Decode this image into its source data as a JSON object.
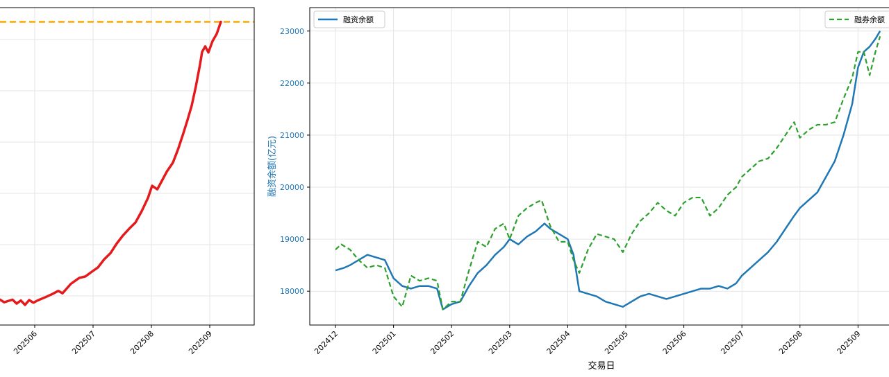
{
  "charts": [
    {
      "id": "left",
      "type": "line",
      "x_ticks": [
        "202506",
        "202507",
        "202508",
        "202509"
      ],
      "series": [
        {
          "color": "#e41a1c",
          "style": "solid",
          "points": [
            [
              0.0,
              0.116
            ],
            [
              0.02,
              0.104
            ],
            [
              0.04,
              0.11
            ],
            [
              0.06,
              0.116
            ],
            [
              0.08,
              0.098
            ],
            [
              0.1,
              0.112
            ],
            [
              0.12,
              0.092
            ],
            [
              0.14,
              0.114
            ],
            [
              0.16,
              0.102
            ],
            [
              0.18,
              0.112
            ],
            [
              0.22,
              0.128
            ],
            [
              0.25,
              0.141
            ],
            [
              0.28,
              0.156
            ],
            [
              0.3,
              0.145
            ],
            [
              0.34,
              0.188
            ],
            [
              0.38,
              0.215
            ],
            [
              0.41,
              0.222
            ],
            [
              0.44,
              0.243
            ],
            [
              0.47,
              0.263
            ],
            [
              0.5,
              0.3
            ],
            [
              0.53,
              0.328
            ],
            [
              0.56,
              0.372
            ],
            [
              0.59,
              0.409
            ],
            [
              0.62,
              0.44
            ],
            [
              0.65,
              0.468
            ],
            [
              0.68,
              0.52
            ],
            [
              0.71,
              0.58
            ],
            [
              0.73,
              0.636
            ],
            [
              0.755,
              0.62
            ],
            [
              0.78,
              0.664
            ],
            [
              0.8,
              0.7
            ],
            [
              0.83,
              0.742
            ],
            [
              0.855,
              0.804
            ],
            [
              0.88,
              0.876
            ],
            [
              0.9,
              0.937
            ],
            [
              0.92,
              1.002
            ],
            [
              0.94,
              1.09
            ],
            [
              0.96,
              1.19
            ],
            [
              0.97,
              1.248
            ],
            [
              0.985,
              1.273
            ],
            [
              1.0,
              1.245
            ],
            [
              1.02,
              1.297
            ],
            [
              1.04,
              1.33
            ],
            [
              1.06,
              1.385
            ]
          ]
        }
      ],
      "reference_line": {
        "color": "#ffa500",
        "style": "dashed",
        "level": 1.385
      },
      "xlim_norm": [
        0.0,
        1.09
      ],
      "ylim_norm": [
        0.0,
        1.45
      ],
      "grid": true
    },
    {
      "id": "right",
      "type": "line",
      "x_label": "交易日",
      "y_label": "融资余额(亿元)",
      "x_ticks": [
        "202412",
        "202501",
        "202502",
        "202503",
        "202504",
        "202505",
        "202506",
        "202507",
        "202508",
        "202509"
      ],
      "y_ticks": [
        "18000",
        "19000",
        "20000",
        "21000",
        "22000",
        "23000"
      ],
      "ylim": [
        17350,
        23450
      ],
      "grid": true,
      "legend_left": "融资余额",
      "legend_right": "融券余额",
      "series": [
        {
          "name": "融资余额",
          "color": "#1f77b4",
          "style": "solid",
          "points": [
            [
              0.0,
              18400
            ],
            [
              0.15,
              18450
            ],
            [
              0.25,
              18500
            ],
            [
              0.4,
              18600
            ],
            [
              0.55,
              18700
            ],
            [
              0.7,
              18650
            ],
            [
              0.85,
              18600
            ],
            [
              1.0,
              18250
            ],
            [
              1.15,
              18100
            ],
            [
              1.3,
              18050
            ],
            [
              1.45,
              18100
            ],
            [
              1.6,
              18100
            ],
            [
              1.75,
              18050
            ],
            [
              1.85,
              17650
            ],
            [
              2.0,
              17750
            ],
            [
              2.15,
              17800
            ],
            [
              2.3,
              18100
            ],
            [
              2.45,
              18350
            ],
            [
              2.6,
              18500
            ],
            [
              2.75,
              18700
            ],
            [
              2.9,
              18850
            ],
            [
              3.0,
              19000
            ],
            [
              3.15,
              18900
            ],
            [
              3.3,
              19050
            ],
            [
              3.45,
              19150
            ],
            [
              3.6,
              19300
            ],
            [
              3.7,
              19200
            ],
            [
              3.85,
              19100
            ],
            [
              4.0,
              19000
            ],
            [
              4.1,
              18700
            ],
            [
              4.2,
              18000
            ],
            [
              4.35,
              17950
            ],
            [
              4.5,
              17900
            ],
            [
              4.65,
              17800
            ],
            [
              4.8,
              17750
            ],
            [
              4.95,
              17700
            ],
            [
              5.1,
              17800
            ],
            [
              5.25,
              17900
            ],
            [
              5.4,
              17950
            ],
            [
              5.55,
              17900
            ],
            [
              5.7,
              17850
            ],
            [
              5.85,
              17900
            ],
            [
              6.0,
              17950
            ],
            [
              6.15,
              18000
            ],
            [
              6.3,
              18050
            ],
            [
              6.45,
              18050
            ],
            [
              6.6,
              18100
            ],
            [
              6.75,
              18050
            ],
            [
              6.9,
              18150
            ],
            [
              7.0,
              18300
            ],
            [
              7.15,
              18450
            ],
            [
              7.3,
              18600
            ],
            [
              7.45,
              18750
            ],
            [
              7.6,
              18950
            ],
            [
              7.75,
              19200
            ],
            [
              7.9,
              19450
            ],
            [
              8.0,
              19600
            ],
            [
              8.15,
              19750
            ],
            [
              8.3,
              19900
            ],
            [
              8.45,
              20200
            ],
            [
              8.6,
              20500
            ],
            [
              8.75,
              21000
            ],
            [
              8.9,
              21600
            ],
            [
              9.0,
              22300
            ],
            [
              9.1,
              22600
            ],
            [
              9.2,
              22700
            ],
            [
              9.3,
              22850
            ],
            [
              9.38,
              23000
            ]
          ]
        },
        {
          "name": "融券余额",
          "color": "#2ca02c",
          "style": "dashed",
          "points": [
            [
              0.0,
              18800
            ],
            [
              0.1,
              18900
            ],
            [
              0.25,
              18800
            ],
            [
              0.4,
              18600
            ],
            [
              0.55,
              18450
            ],
            [
              0.7,
              18500
            ],
            [
              0.85,
              18450
            ],
            [
              1.0,
              17900
            ],
            [
              1.15,
              17700
            ],
            [
              1.3,
              18300
            ],
            [
              1.45,
              18200
            ],
            [
              1.6,
              18250
            ],
            [
              1.75,
              18200
            ],
            [
              1.85,
              17650
            ],
            [
              2.0,
              17800
            ],
            [
              2.15,
              17800
            ],
            [
              2.3,
              18400
            ],
            [
              2.45,
              18950
            ],
            [
              2.6,
              18850
            ],
            [
              2.75,
              19200
            ],
            [
              2.9,
              19300
            ],
            [
              3.0,
              19000
            ],
            [
              3.15,
              19450
            ],
            [
              3.3,
              19600
            ],
            [
              3.45,
              19700
            ],
            [
              3.55,
              19750
            ],
            [
              3.7,
              19250
            ],
            [
              3.85,
              18950
            ],
            [
              4.0,
              18950
            ],
            [
              4.1,
              18600
            ],
            [
              4.2,
              18350
            ],
            [
              4.35,
              18800
            ],
            [
              4.5,
              19100
            ],
            [
              4.65,
              19050
            ],
            [
              4.8,
              19000
            ],
            [
              4.95,
              18750
            ],
            [
              5.1,
              19100
            ],
            [
              5.25,
              19350
            ],
            [
              5.4,
              19500
            ],
            [
              5.55,
              19700
            ],
            [
              5.7,
              19550
            ],
            [
              5.85,
              19450
            ],
            [
              6.0,
              19700
            ],
            [
              6.15,
              19800
            ],
            [
              6.3,
              19800
            ],
            [
              6.45,
              19450
            ],
            [
              6.6,
              19600
            ],
            [
              6.75,
              19850
            ],
            [
              6.9,
              20000
            ],
            [
              7.0,
              20200
            ],
            [
              7.15,
              20350
            ],
            [
              7.3,
              20500
            ],
            [
              7.45,
              20550
            ],
            [
              7.6,
              20750
            ],
            [
              7.75,
              21000
            ],
            [
              7.9,
              21250
            ],
            [
              8.0,
              20950
            ],
            [
              8.15,
              21100
            ],
            [
              8.3,
              21200
            ],
            [
              8.45,
              21200
            ],
            [
              8.6,
              21250
            ],
            [
              8.75,
              21700
            ],
            [
              8.9,
              22100
            ],
            [
              9.0,
              22600
            ],
            [
              9.1,
              22600
            ],
            [
              9.2,
              22150
            ],
            [
              9.3,
              22600
            ],
            [
              9.38,
              22900
            ]
          ]
        }
      ]
    }
  ]
}
